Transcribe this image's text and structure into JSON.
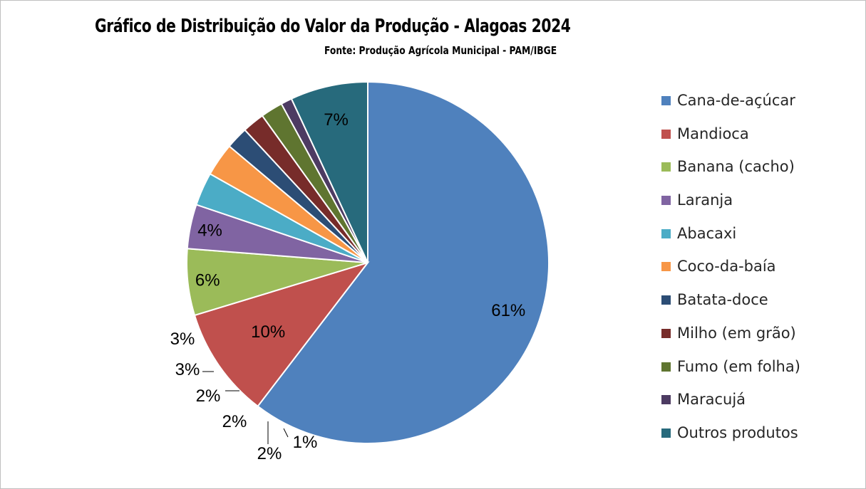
{
  "chart_data": {
    "type": "pie",
    "title": "Gráfico de Distribuição do Valor da Produção - Alagoas 2024",
    "subtitle": "Fonte: Produção Agrícola Municipal - PAM/IBGE",
    "legend_position": "right",
    "slices": [
      {
        "name": "Cana-de-açúcar",
        "value": 61,
        "label": "61%",
        "color": "#4F81BD"
      },
      {
        "name": "Mandioca",
        "value": 10,
        "label": "10%",
        "color": "#C0504D"
      },
      {
        "name": "Banana (cacho)",
        "value": 6,
        "label": "6%",
        "color": "#9BBB59"
      },
      {
        "name": "Laranja",
        "value": 4,
        "label": "4%",
        "color": "#8064A2"
      },
      {
        "name": "Abacaxi",
        "value": 3,
        "label": "3%",
        "color": "#4BACC6"
      },
      {
        "name": "Coco-da-baía",
        "value": 3,
        "label": "3%",
        "color": "#F79646"
      },
      {
        "name": "Batata-doce",
        "value": 2,
        "label": "2%",
        "color": "#2C4D75"
      },
      {
        "name": "Milho (em grão)",
        "value": 2,
        "label": "2%",
        "color": "#772C2A"
      },
      {
        "name": "Fumo (em folha)",
        "value": 2,
        "label": "2%",
        "color": "#5F7530"
      },
      {
        "name": "Maracujá",
        "value": 1,
        "label": "1%",
        "color": "#4D3B62"
      },
      {
        "name": "Outros produtos",
        "value": 7,
        "label": "7%",
        "color": "#276A7C"
      }
    ]
  }
}
